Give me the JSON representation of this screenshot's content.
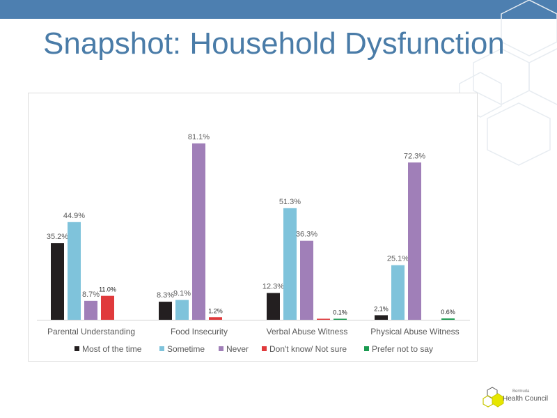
{
  "slide": {
    "title": "Snapshot: Household Dysfunction",
    "accent_color": "#4d7fb0",
    "title_color": "#4a7ca8"
  },
  "logo": {
    "small_text": "Bermuda",
    "text": "Health Council"
  },
  "chart_data": {
    "type": "bar",
    "title": "",
    "xlabel": "",
    "ylabel": "",
    "ylim": [
      0,
      90
    ],
    "grid": false,
    "legend_position": "bottom",
    "categories": [
      "Parental Understanding",
      "Food Insecurity",
      "Verbal Abuse Witness",
      "Physical Abuse Witness"
    ],
    "series": [
      {
        "name": "Most of the time",
        "color": "#231f20",
        "values": [
          35.2,
          8.3,
          12.3,
          2.1
        ],
        "labels": [
          "35.2%",
          "8.3%",
          "12.3%",
          "2.1%"
        ]
      },
      {
        "name": "Sometime",
        "color": "#7fc3db",
        "values": [
          44.9,
          9.1,
          51.3,
          25.1
        ],
        "labels": [
          "44.9%",
          "9.1%",
          "51.3%",
          "25.1%"
        ]
      },
      {
        "name": "Never",
        "color": "#a07fb8",
        "values": [
          8.7,
          81.1,
          36.3,
          72.3
        ],
        "labels": [
          "8.7%",
          "81.1%",
          "36.3%",
          "72.3%"
        ]
      },
      {
        "name": "Don't know/ Not sure",
        "color": "#e03a3c",
        "values": [
          11.0,
          1.2,
          0,
          null
        ],
        "labels": [
          "11.0%",
          "1.2%",
          "",
          ""
        ]
      },
      {
        "name": "Prefer not to say",
        "color": "#1a9a50",
        "values": [
          null,
          null,
          0.1,
          0.6
        ],
        "labels": [
          "",
          "",
          "0.1%",
          "0.6%"
        ]
      }
    ]
  }
}
